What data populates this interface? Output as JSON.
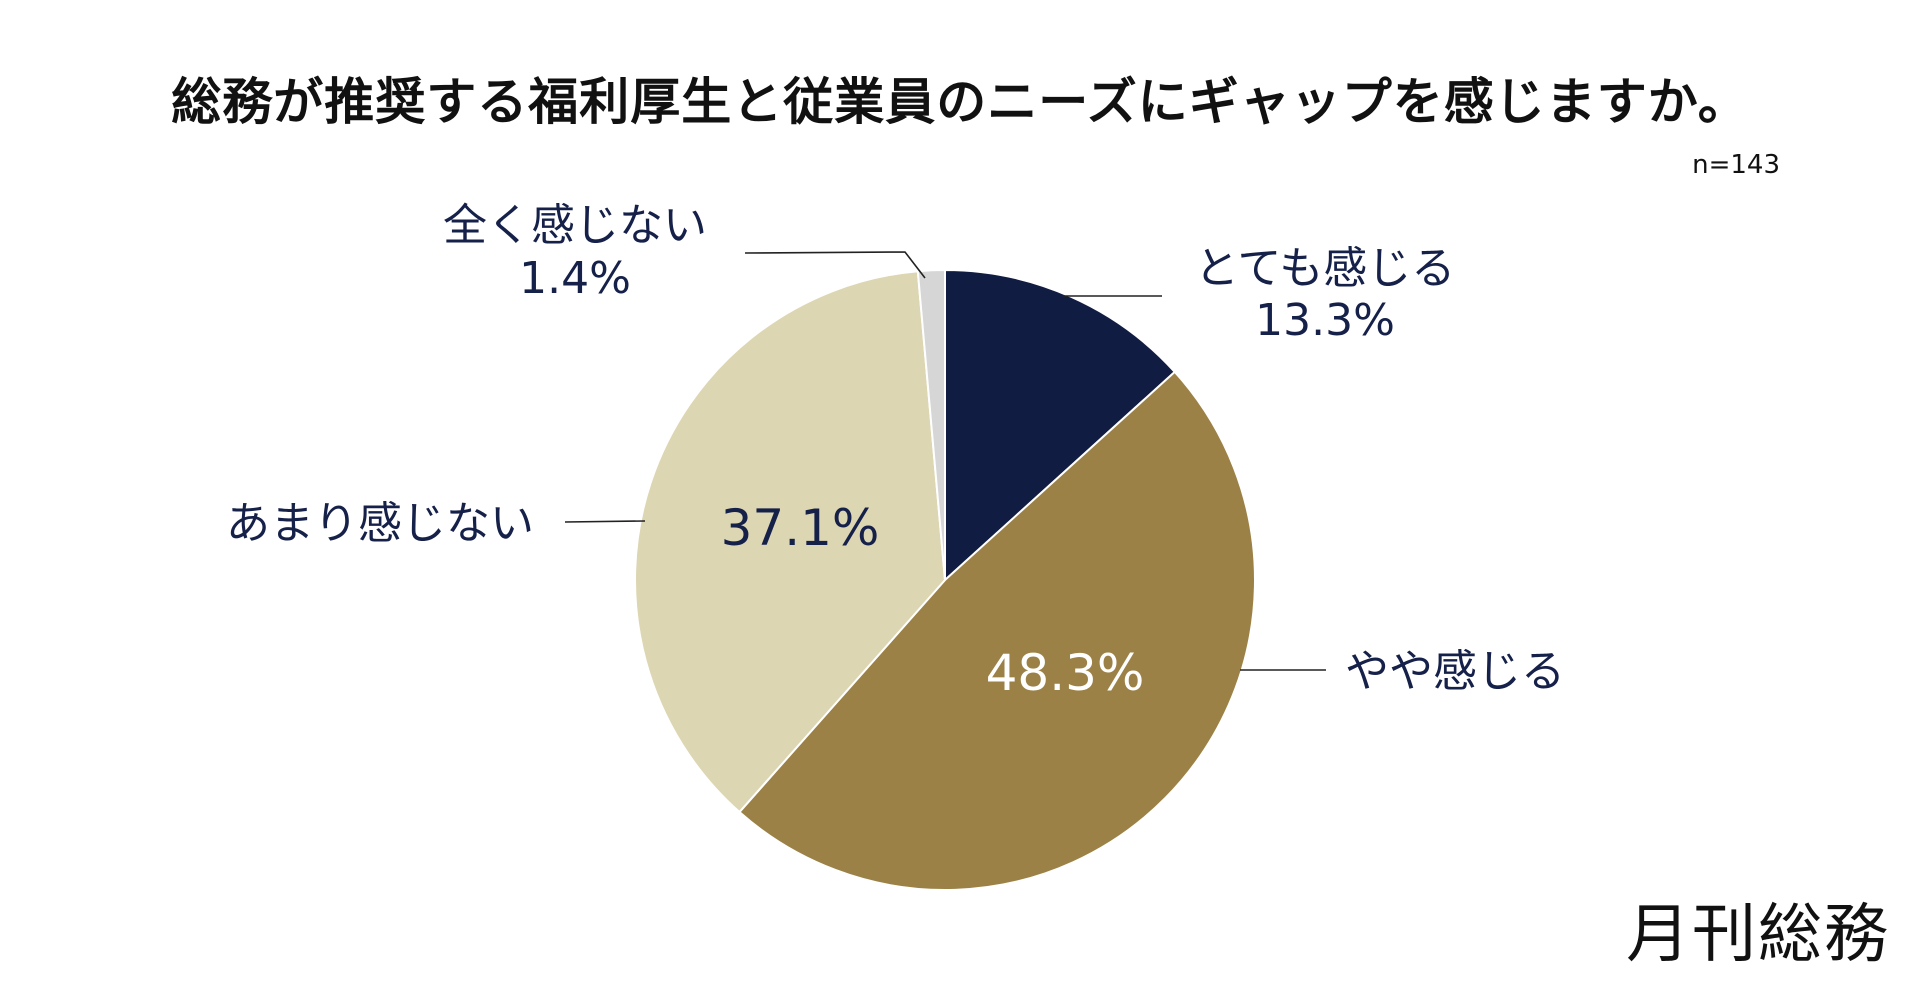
{
  "title": "総務が推奨する福利厚生と従業員のニーズにギャップを感じますか。",
  "sample_size": "n=143",
  "brand": "月刊総務",
  "colors": {
    "very": "#111c42",
    "somewhat": "#9c8147",
    "not_much": "#ddd6b2",
    "not_at_all": "#d6d6d6",
    "label_dark": "#16214a",
    "label_light": "#ffffff"
  },
  "chart_data": {
    "type": "pie",
    "title": "総務が推奨する福利厚生と従業員のニーズにギャップを感じますか。",
    "start": "12 o'clock",
    "direction": "clockwise",
    "slices": [
      {
        "label": "とても感じる",
        "value": 13.3,
        "value_text": "13.3%",
        "color": "#111c42",
        "label_placement": "outside"
      },
      {
        "label": "やや感じる",
        "value": 48.3,
        "value_text": "48.3%",
        "color": "#9c8147",
        "label_placement": "split"
      },
      {
        "label": "あまり感じない",
        "value": 37.1,
        "value_text": "37.1%",
        "color": "#ddd6b2",
        "label_placement": "split"
      },
      {
        "label": "全く感じない",
        "value": 1.4,
        "value_text": "1.4%",
        "color": "#d6d6d6",
        "label_placement": "outside"
      }
    ]
  }
}
